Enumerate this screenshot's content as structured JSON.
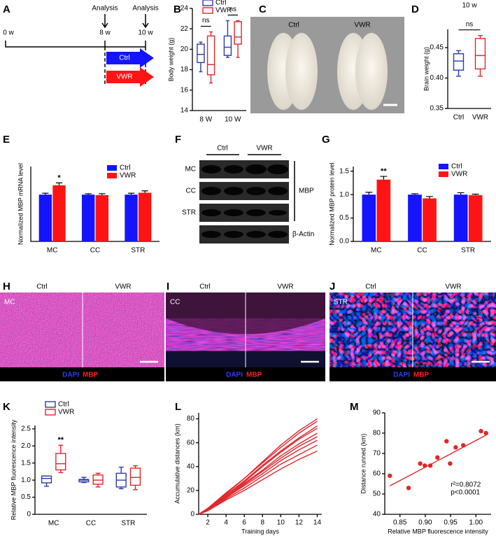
{
  "timeline": {
    "panel": "A",
    "start": "0 w",
    "points": [
      {
        "label": "Analysis",
        "time": "8 w"
      },
      {
        "label": "Analysis",
        "time": "10 w"
      }
    ],
    "groups": [
      "Ctrl",
      "VWR"
    ]
  },
  "photo": {
    "panel": "C",
    "groups": [
      "Ctrl",
      "VWR"
    ]
  },
  "blot": {
    "panel": "F",
    "groups": [
      "Ctrl",
      "VWR"
    ],
    "rows": [
      "MC",
      "CC",
      "STR",
      "β-Actin"
    ],
    "target": "MBP"
  },
  "micrographs": [
    {
      "panel": "H",
      "region": "MC",
      "groups": [
        "Ctrl",
        "VWR"
      ],
      "stains": [
        "DAPI",
        "MBP"
      ]
    },
    {
      "panel": "I",
      "region": "CC",
      "groups": [
        "Ctrl",
        "VWR"
      ],
      "stains": [
        "DAPI",
        "MBP"
      ]
    },
    {
      "panel": "J",
      "region": "STR",
      "groups": [
        "Ctrl",
        "VWR"
      ],
      "stains": [
        "DAPI",
        "MBP"
      ]
    }
  ],
  "chart_data": [
    {
      "panel": "B",
      "type": "box",
      "ylabel": "Body weight (g)",
      "categories": [
        "8 W",
        "10 W"
      ],
      "series": [
        {
          "name": "Ctrl",
          "color": "#2b3bb0",
          "values": [
            {
              "min": 17.8,
              "q1": 18.7,
              "median": 19.5,
              "q3": 20.5,
              "max": 20.7
            },
            {
              "min": 19.2,
              "q1": 19.4,
              "median": 20.2,
              "q3": 21.3,
              "max": 22.8
            }
          ]
        },
        {
          "name": "VWR",
          "color": "#e0262b",
          "values": [
            {
              "min": 16.7,
              "q1": 17.5,
              "median": 18.5,
              "q3": 21.3,
              "max": 21.7
            },
            {
              "min": 19.2,
              "q1": 20.5,
              "median": 21.2,
              "q3": 22.7,
              "max": 22.8
            }
          ]
        }
      ],
      "ylim": [
        14,
        24
      ],
      "yticks": [
        14,
        16,
        18,
        20,
        22,
        24
      ],
      "legend": "top-left",
      "annotations": [
        "ns",
        "ns"
      ],
      "bracket": true
    },
    {
      "panel": "D",
      "type": "box",
      "title": "10 w",
      "ylabel": "Brain weight (g)",
      "categories": [
        "Ctrl",
        "VWR"
      ],
      "values": [
        {
          "min": 0.403,
          "q1": 0.413,
          "median": 0.428,
          "q3": 0.44,
          "max": 0.445
        },
        {
          "min": 0.403,
          "q1": 0.415,
          "median": 0.437,
          "q3": 0.465,
          "max": 0.47
        }
      ],
      "colors": [
        "#2b3bb0",
        "#e0262b"
      ],
      "ylim": [
        0.35,
        0.48
      ],
      "yticks": [
        0.35,
        {
          "value": 0.4,
          "label": "0.40"
        },
        0.45
      ],
      "annotations": [
        "ns"
      ],
      "bracket": true
    },
    {
      "panel": "E",
      "type": "bar",
      "ylabel": "Normalized MBP mRNA level",
      "categories": [
        "MC",
        "CC",
        "STR"
      ],
      "series": [
        {
          "name": "Ctrl",
          "color": "#1414ff",
          "values": [
            1.0,
            1.0,
            1.0
          ],
          "errors": [
            0.03,
            0.02,
            0.03
          ]
        },
        {
          "name": "VWR",
          "color": "#ff1414",
          "values": [
            1.2,
            0.99,
            1.04
          ],
          "errors": [
            0.05,
            0.03,
            0.04
          ]
        }
      ],
      "ylim": [
        0,
        1.6
      ],
      "legend": "top-right",
      "annotations": [
        "*",
        null,
        null
      ]
    },
    {
      "panel": "G",
      "type": "bar",
      "ylabel": "Normalized MBP protein level",
      "categories": [
        "MC",
        "CC",
        "STR"
      ],
      "series": [
        {
          "name": "Ctrl",
          "color": "#1414ff",
          "values": [
            1.0,
            1.0,
            1.0
          ],
          "errors": [
            0.05,
            0.02,
            0.04
          ]
        },
        {
          "name": "VWR",
          "color": "#ff1414",
          "values": [
            1.32,
            0.92,
            0.99
          ],
          "errors": [
            0.07,
            0.04,
            0.02
          ]
        }
      ],
      "ylim": [
        0,
        1.6
      ],
      "yticks": [
        {
          "value": 0,
          "label": "0.0"
        },
        0.5,
        {
          "value": 1,
          "label": "1.0"
        },
        1.5
      ],
      "legend": "top-right",
      "annotations": [
        "**",
        null,
        null
      ]
    },
    {
      "panel": "K",
      "type": "box",
      "ylabel": "Relative MBP fluorescence intensity",
      "categories": [
        "MC",
        "CC",
        "STR"
      ],
      "series": [
        {
          "name": "Ctrl",
          "color": "#2b3bb0",
          "values": [
            {
              "min": 0.82,
              "q1": 0.92,
              "median": 1.05,
              "q3": 1.12,
              "max": 1.12
            },
            {
              "min": 0.93,
              "q1": 0.95,
              "median": 1.0,
              "q3": 1.02,
              "max": 1.08
            },
            {
              "min": 0.75,
              "q1": 0.8,
              "median": 1.0,
              "q3": 1.2,
              "max": 1.38
            }
          ]
        },
        {
          "name": "VWR",
          "color": "#e0262b",
          "values": [
            {
              "min": 1.22,
              "q1": 1.3,
              "median": 1.48,
              "q3": 1.78,
              "max": 2.02
            },
            {
              "min": 0.8,
              "q1": 0.88,
              "median": 1.0,
              "q3": 1.15,
              "max": 1.2
            },
            {
              "min": 0.72,
              "q1": 0.85,
              "median": 1.08,
              "q3": 1.35,
              "max": 1.42
            }
          ]
        }
      ],
      "ylim": [
        0,
        2.6
      ],
      "yticks": [
        0,
        0.5,
        {
          "value": 1,
          "label": "1.0"
        },
        1.5,
        {
          "value": 2,
          "label": "2.0"
        },
        2.5
      ],
      "legend": "top-left",
      "annotations": [
        "**",
        null,
        null
      ]
    },
    {
      "panel": "L",
      "type": "line",
      "xlabel": "Training days",
      "ylabel": "Accumulative distances (km)",
      "color": "#e0262b",
      "x": [
        1,
        2,
        4,
        6,
        8,
        10,
        12,
        14
      ],
      "series": [
        {
          "values": [
            0,
            5,
            18,
            30,
            44,
            58,
            70,
            80
          ]
        },
        {
          "values": [
            0,
            5,
            17,
            30,
            43,
            56,
            68,
            78
          ]
        },
        {
          "values": [
            0,
            4,
            16,
            28,
            41,
            53,
            64,
            74
          ]
        },
        {
          "values": [
            0,
            4,
            16,
            27,
            40,
            52,
            63,
            72
          ]
        },
        {
          "values": [
            0,
            4,
            15,
            26,
            37,
            49,
            59,
            68
          ]
        },
        {
          "values": [
            0,
            4,
            14,
            25,
            36,
            47,
            57,
            65
          ]
        },
        {
          "values": [
            0,
            4,
            14,
            24,
            34,
            45,
            54,
            62
          ]
        },
        {
          "values": [
            0,
            3,
            13,
            22,
            32,
            42,
            50,
            58
          ]
        },
        {
          "values": [
            0,
            3,
            12,
            20,
            29,
            38,
            46,
            53
          ]
        }
      ],
      "xlim": [
        1,
        14.5
      ],
      "xticks": [
        2,
        4,
        6,
        8,
        10,
        12,
        14
      ],
      "ylim": [
        0,
        85
      ],
      "yticks": [
        0,
        20,
        40,
        60,
        80
      ]
    },
    {
      "panel": "M",
      "type": "scatter",
      "xlabel": "Relative MBP fluorescence intensity",
      "ylabel": "Distance runned (km)",
      "color": "#e0262b",
      "x": [
        0.83,
        0.867,
        0.89,
        0.899,
        0.91,
        0.924,
        0.942,
        0.949,
        0.96,
        0.975,
        1.01,
        1.02
      ],
      "values": [
        59,
        53,
        65,
        64,
        64,
        68,
        76,
        65,
        73,
        74,
        81,
        80
      ],
      "fit": {
        "x": [
          0.83,
          1.02
        ],
        "values": [
          54,
          79
        ]
      },
      "stats": [
        "r²=0.8072",
        "p<0.0001"
      ],
      "xlim": [
        0.82,
        1.03
      ],
      "xticks": [
        0.85,
        {
          "value": 0.9,
          "label": "0.90"
        },
        0.95,
        {
          "value": 1,
          "label": "1.00"
        }
      ],
      "ylim": [
        40,
        90
      ],
      "yticks": [
        40,
        50,
        60,
        70,
        80,
        90
      ]
    }
  ]
}
